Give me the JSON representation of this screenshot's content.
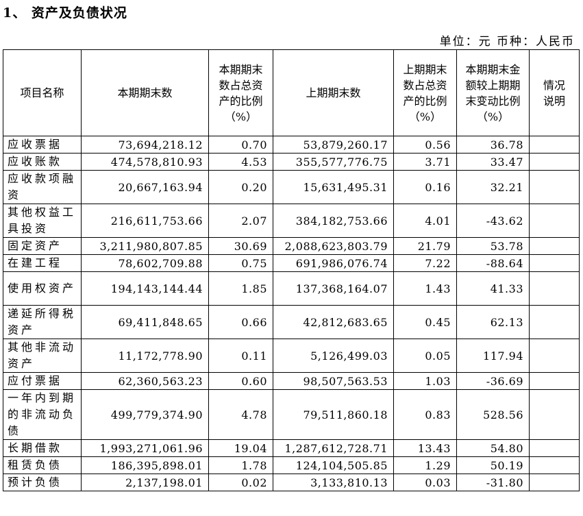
{
  "title": "1、 资产及负债状况",
  "unit_line": "单位：元   币种：人民币",
  "headers": {
    "name": "项目名称",
    "current": "本期期末数",
    "current_pct": "本期期末数占总资产的比例（%）",
    "previous": "上期期末数",
    "previous_pct": "上期期末数占总资产的比例（%）",
    "change": "本期期末金额较上期期末变动比例（%）",
    "note": "情况说明"
  },
  "rows": [
    {
      "name": "应收票据",
      "current": "73,694,218.12",
      "current_pct": "0.70",
      "previous": "53,879,260.17",
      "previous_pct": "0.56",
      "change": "36.78",
      "note": ""
    },
    {
      "name": "应收账款",
      "current": "474,578,810.93",
      "current_pct": "4.53",
      "previous": "355,577,776.75",
      "previous_pct": "3.71",
      "change": "33.47",
      "note": ""
    },
    {
      "name": "应收款项融资",
      "current": "20,667,163.94",
      "current_pct": "0.20",
      "previous": "15,631,495.31",
      "previous_pct": "0.16",
      "change": "32.21",
      "note": ""
    },
    {
      "name": "其他权益工具投资",
      "current": "216,611,753.66",
      "current_pct": "2.07",
      "previous": "384,182,753.66",
      "previous_pct": "4.01",
      "change": "-43.62",
      "note": ""
    },
    {
      "name": "固定资产",
      "current": "3,211,980,807.85",
      "current_pct": "30.69",
      "previous": "2,088,623,803.79",
      "previous_pct": "21.79",
      "change": "53.78",
      "note": ""
    },
    {
      "name": "在建工程",
      "current": "78,602,709.88",
      "current_pct": "0.75",
      "previous": "691,986,076.74",
      "previous_pct": "7.22",
      "change": "-88.64",
      "note": ""
    },
    {
      "name": "使用权资产",
      "current": "194,143,144.44",
      "current_pct": "1.85",
      "previous": "137,368,164.07",
      "previous_pct": "1.43",
      "change": "41.33",
      "note": ""
    },
    {
      "name": "递延所得税资产",
      "current": "69,411,848.65",
      "current_pct": "0.66",
      "previous": "42,812,683.65",
      "previous_pct": "0.45",
      "change": "62.13",
      "note": ""
    },
    {
      "name": "其他非流动资产",
      "current": "11,172,778.90",
      "current_pct": "0.11",
      "previous": "5,126,499.03",
      "previous_pct": "0.05",
      "change": "117.94",
      "note": ""
    },
    {
      "name": "应付票据",
      "current": "62,360,563.23",
      "current_pct": "0.60",
      "previous": "98,507,563.53",
      "previous_pct": "1.03",
      "change": "-36.69",
      "note": ""
    },
    {
      "name": "一年内到期的非流动负债",
      "current": "499,779,374.90",
      "current_pct": "4.78",
      "previous": "79,511,860.18",
      "previous_pct": "0.83",
      "change": "528.56",
      "note": ""
    },
    {
      "name": "长期借款",
      "current": "1,993,271,061.96",
      "current_pct": "19.04",
      "previous": "1,287,612,728.71",
      "previous_pct": "13.43",
      "change": "54.80",
      "note": ""
    },
    {
      "name": "租赁负债",
      "current": "186,395,898.01",
      "current_pct": "1.78",
      "previous": "124,104,505.85",
      "previous_pct": "1.29",
      "change": "50.19",
      "note": ""
    },
    {
      "name": "预计负债",
      "current": "2,137,198.01",
      "current_pct": "0.02",
      "previous": "3,133,810.13",
      "previous_pct": "0.03",
      "change": "-31.80",
      "note": ""
    }
  ]
}
